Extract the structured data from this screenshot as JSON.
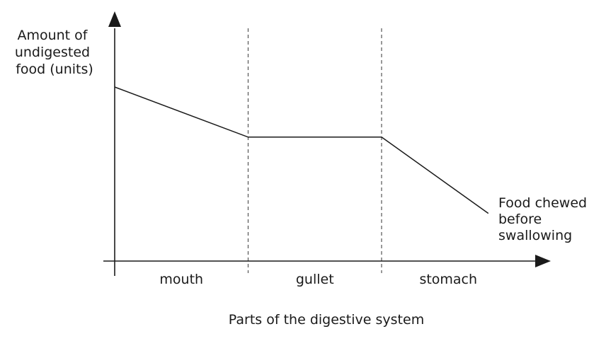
{
  "chart_data": {
    "type": "line",
    "title": "",
    "ylabel": [
      "Amount of",
      "undigested",
      "food (units)"
    ],
    "xlabel": "Parts of the digestive system",
    "categories": [
      "mouth",
      "gullet",
      "stomach"
    ],
    "x": [
      0,
      1,
      2,
      2.8
    ],
    "ylim": [
      0,
      1
    ],
    "grid": false,
    "series": [
      {
        "name": [
          "Food chewed",
          "before",
          "swallowing"
        ],
        "values": [
          0.73,
          0.52,
          0.52,
          0.2
        ]
      }
    ],
    "colors": {
      "line": "#1a1a1a",
      "divider": "#555555"
    }
  }
}
